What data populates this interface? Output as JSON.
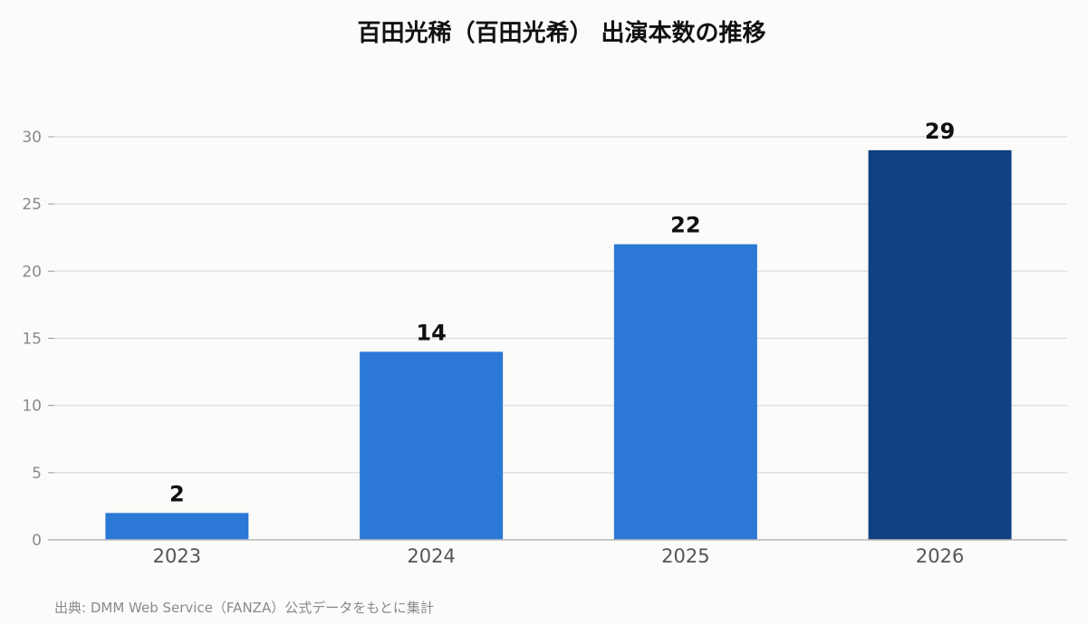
{
  "chart_data": {
    "type": "bar",
    "title": "百田光稀（百田光希） 出演本数の推移",
    "categories": [
      "2023",
      "2024",
      "2025",
      "2026"
    ],
    "values": [
      2,
      14,
      22,
      29
    ],
    "bar_colors": [
      "#2b78d6",
      "#2b78d6",
      "#2b78d6",
      "#104181"
    ],
    "ylim": [
      0,
      30
    ],
    "yticks": [
      0,
      5,
      10,
      15,
      20,
      25,
      30
    ],
    "grid": true,
    "xlabel": "",
    "ylabel": "",
    "source": "出典: DMM Web Service（FANZA）公式データをもとに集計"
  }
}
